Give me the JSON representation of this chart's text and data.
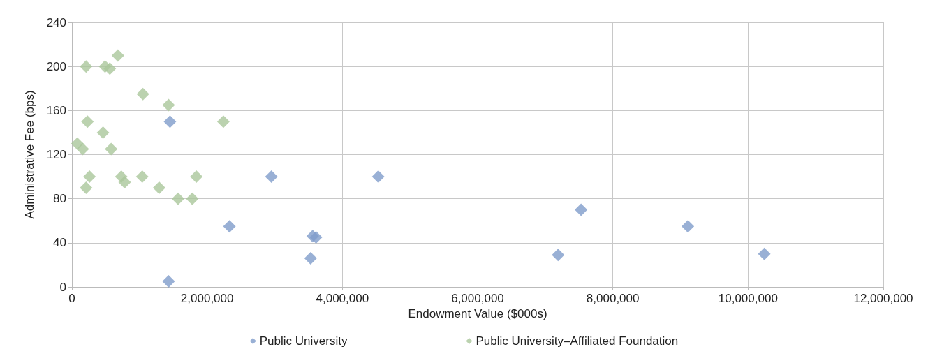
{
  "chart_data": {
    "type": "scatter",
    "xlabel": "Endowment Value ($000s)",
    "ylabel": "Administrative Fee (bps)",
    "xlim": [
      0,
      12000000
    ],
    "xticks": [
      {
        "value": 0,
        "label": "0"
      },
      {
        "value": 2000000,
        "label": "2,000,000"
      },
      {
        "value": 4000000,
        "label": "4,000,000"
      },
      {
        "value": 6000000,
        "label": "6,000,000"
      },
      {
        "value": 8000000,
        "label": "8,000,000"
      },
      {
        "value": 10000000,
        "label": "10,000,000"
      },
      {
        "value": 12000000,
        "label": "12,000,000"
      }
    ],
    "ylim": [
      0,
      240
    ],
    "yticks": [
      0,
      40,
      80,
      120,
      160,
      200,
      240
    ],
    "grid": true,
    "legend": "bottom",
    "marker": "diamond",
    "series": [
      {
        "name": "Public University",
        "color": "#7f9ccb",
        "x": [
          1450000,
          1430000,
          2330000,
          2950000,
          3560000,
          3610000,
          3530000,
          4530000,
          7190000,
          7530000,
          9110000,
          10240000
        ],
        "values": [
          150,
          5,
          55,
          100,
          46,
          45,
          26,
          100,
          29,
          70,
          55,
          30
        ]
      },
      {
        "name": "Public University–Affiliated Foundation",
        "color": "#aac79b",
        "x": [
          210000,
          490000,
          560000,
          680000,
          1050000,
          1430000,
          2240000,
          230000,
          460000,
          80000,
          160000,
          580000,
          260000,
          210000,
          730000,
          780000,
          1040000,
          1290000,
          1570000,
          1780000,
          1840000
        ],
        "values": [
          200,
          200,
          198,
          210,
          175,
          165,
          150,
          150,
          140,
          130,
          125,
          125,
          100,
          90,
          100,
          95,
          100,
          90,
          80,
          80,
          100
        ]
      }
    ]
  }
}
